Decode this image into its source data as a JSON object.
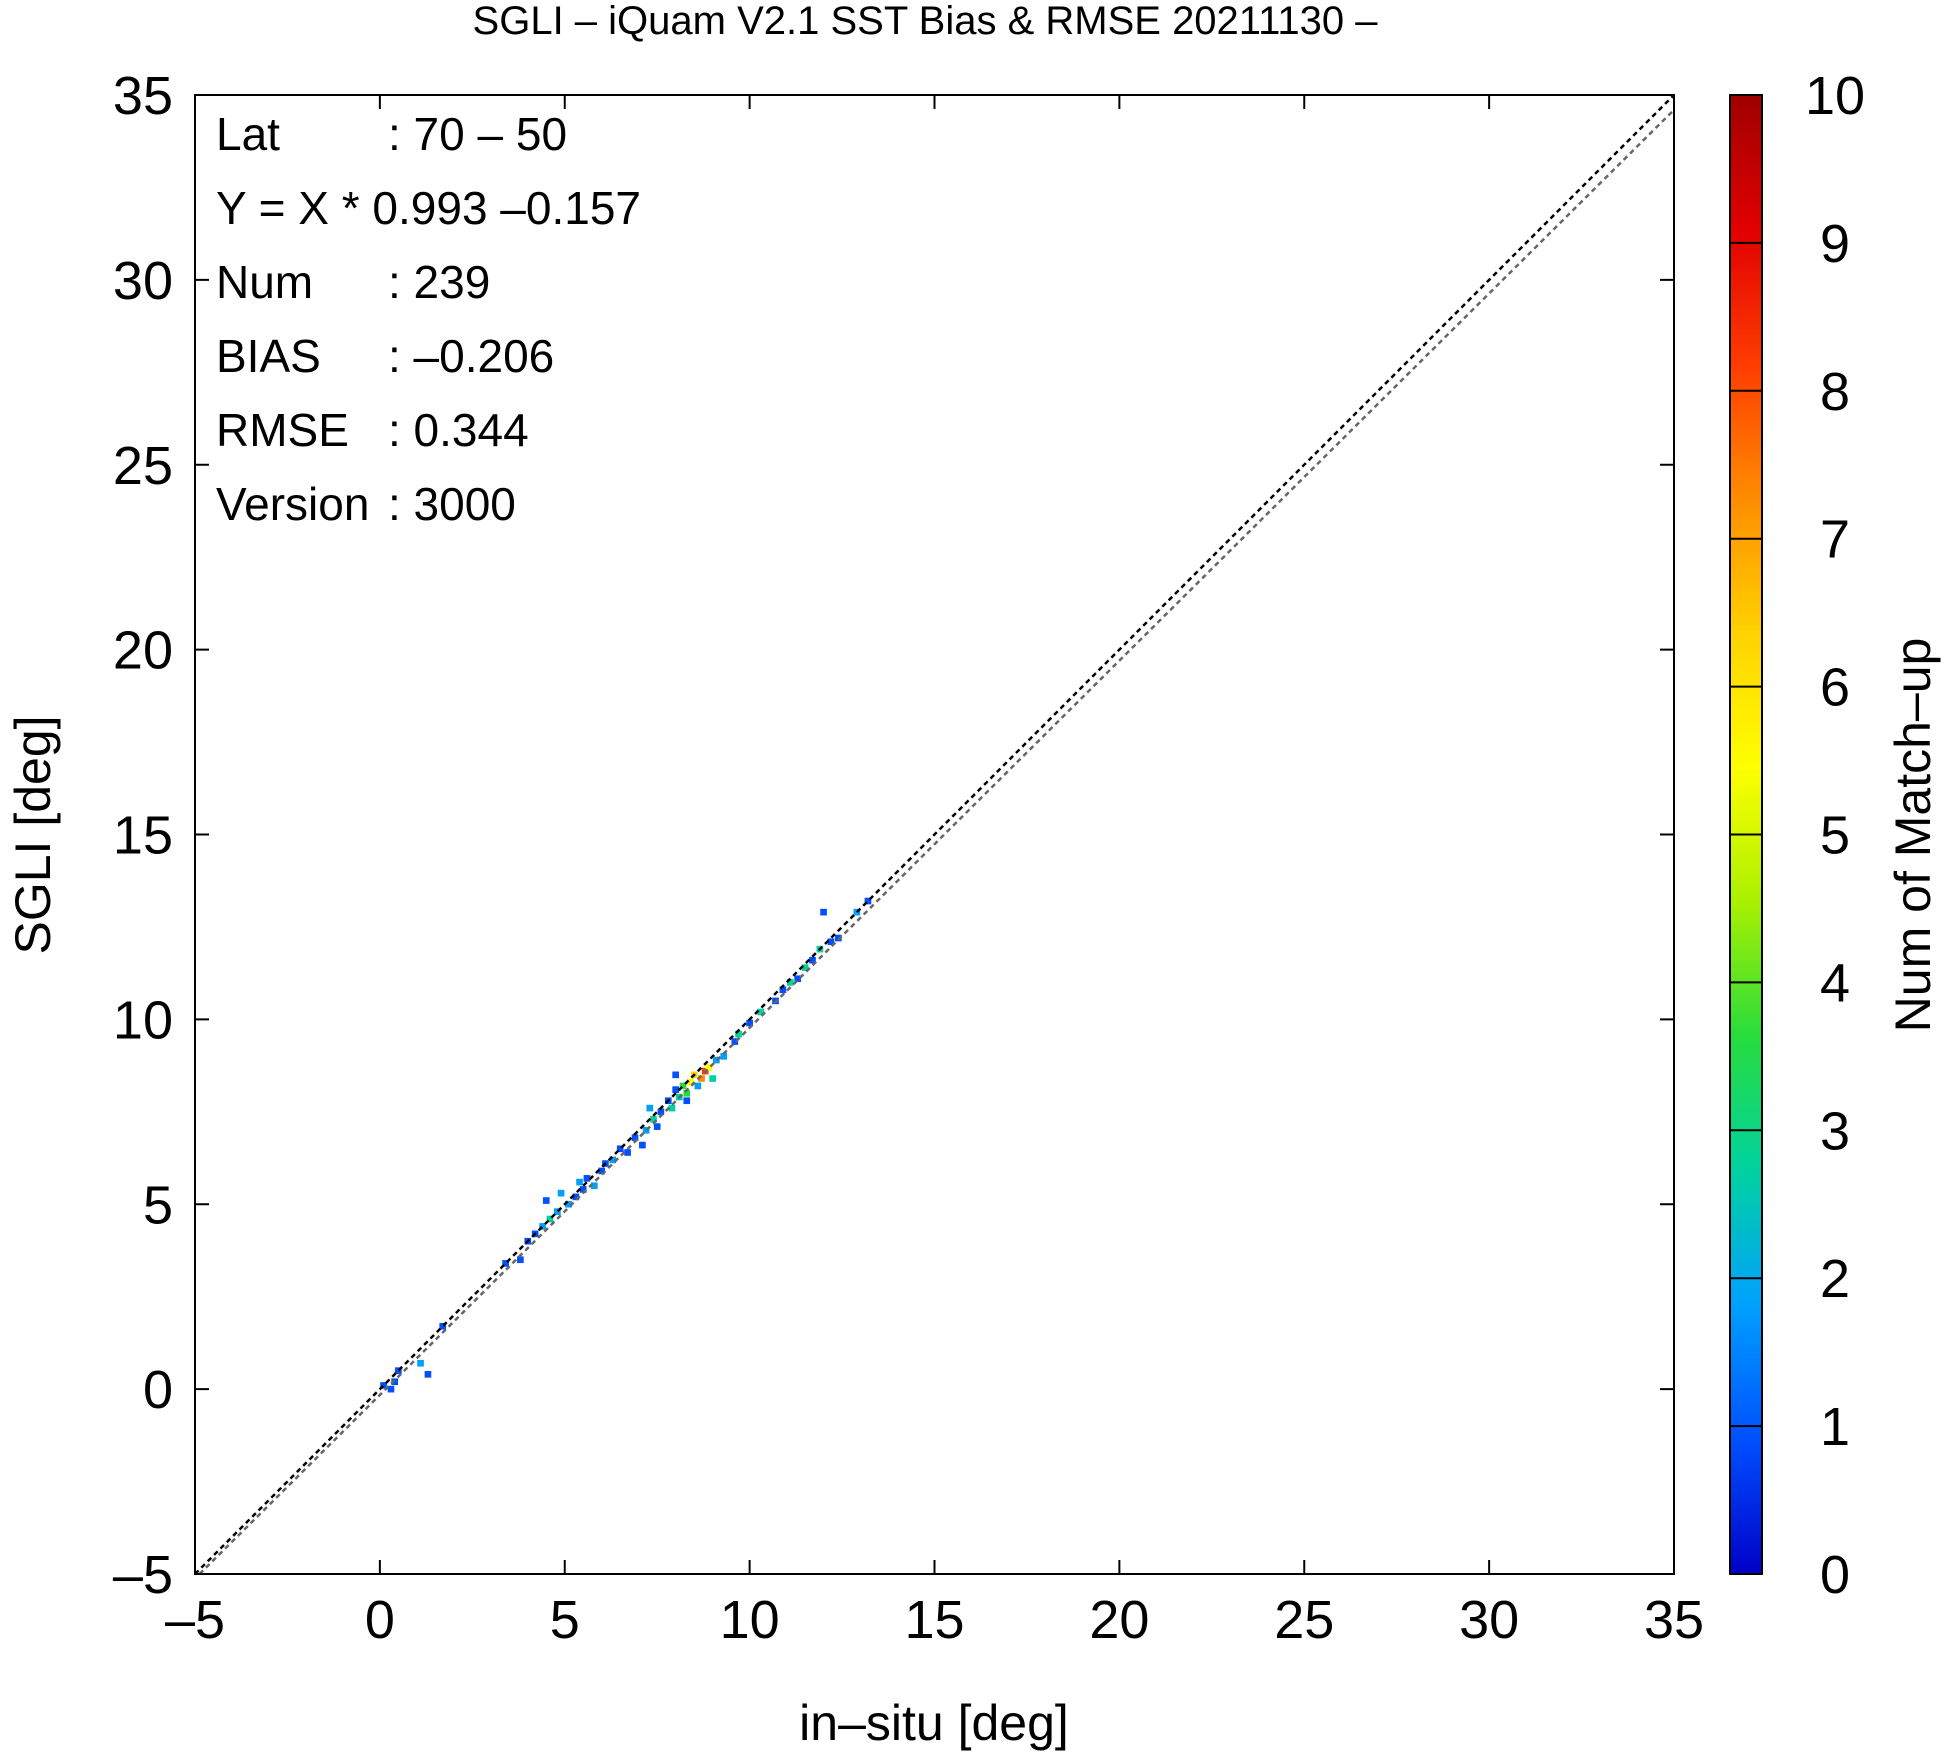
{
  "chart_data": {
    "type": "heatmap",
    "title": "SGLI – iQuam V2.1 SST Bias & RMSE 20211130 –",
    "xlabel": "in–situ [deg]",
    "ylabel": "SGLI [deg]",
    "xlim": [
      -5,
      35
    ],
    "ylim": [
      -5,
      35
    ],
    "xticks": [
      "–5",
      "0",
      "5",
      "10",
      "15",
      "20",
      "25",
      "30",
      "35"
    ],
    "yticks": [
      "–5",
      "0",
      "5",
      "10",
      "15",
      "20",
      "25",
      "30",
      "35"
    ],
    "colorbar": {
      "label": "Num of Match–up",
      "min": 0,
      "max": 10,
      "ticks": [
        "0",
        "1",
        "2",
        "3",
        "4",
        "5",
        "6",
        "7",
        "8",
        "9",
        "10"
      ],
      "colormap": [
        "#0000c8",
        "#0050ff",
        "#00a0ff",
        "#00d2a0",
        "#28dc3c",
        "#aaf000",
        "#ffff00",
        "#ffd200",
        "#ff8c00",
        "#ff3c00",
        "#e10000",
        "#a00000"
      ]
    },
    "reference_lines": [
      {
        "name": "1:1",
        "slope": 1.0,
        "intercept": 0.0,
        "color": "#000000"
      },
      {
        "name": "regression",
        "slope": 0.993,
        "intercept": -0.157,
        "color": "#666666"
      }
    ],
    "stats": [
      {
        "label": "Lat",
        "value": ": 70 – 50"
      },
      {
        "label": "Y = X * 0.993 –0.157",
        "value": ""
      },
      {
        "label": "Num",
        "value": ": 239"
      },
      {
        "label": "BIAS",
        "value": ": –0.206"
      },
      {
        "label": "RMSE",
        "value": ": 0.344"
      },
      {
        "label": "Version",
        "value": ": 3000"
      }
    ],
    "cells": [
      [
        0.1,
        0.1,
        1
      ],
      [
        0.3,
        0.0,
        1
      ],
      [
        0.4,
        0.2,
        1
      ],
      [
        0.5,
        0.5,
        1
      ],
      [
        1.1,
        0.7,
        2
      ],
      [
        1.3,
        0.4,
        1
      ],
      [
        1.7,
        1.7,
        1
      ],
      [
        3.4,
        3.4,
        1
      ],
      [
        3.8,
        3.5,
        1
      ],
      [
        4.0,
        4.0,
        1
      ],
      [
        4.2,
        4.2,
        1
      ],
      [
        4.4,
        4.4,
        2
      ],
      [
        4.6,
        4.6,
        3
      ],
      [
        4.8,
        4.8,
        2
      ],
      [
        4.5,
        5.1,
        1
      ],
      [
        4.9,
        5.3,
        2
      ],
      [
        5.1,
        5.0,
        2
      ],
      [
        5.3,
        5.2,
        1
      ],
      [
        5.4,
        5.6,
        2
      ],
      [
        5.5,
        5.4,
        1
      ],
      [
        5.6,
        5.7,
        1
      ],
      [
        5.8,
        5.5,
        2
      ],
      [
        6.0,
        5.9,
        1
      ],
      [
        6.1,
        6.1,
        1
      ],
      [
        6.3,
        6.2,
        2
      ],
      [
        6.5,
        6.5,
        1
      ],
      [
        6.7,
        6.4,
        1
      ],
      [
        6.9,
        6.8,
        1
      ],
      [
        7.1,
        6.6,
        1
      ],
      [
        7.2,
        7.0,
        2
      ],
      [
        7.4,
        7.3,
        3
      ],
      [
        7.5,
        7.1,
        1
      ],
      [
        7.3,
        7.6,
        2
      ],
      [
        7.6,
        7.5,
        1
      ],
      [
        7.8,
        7.8,
        1
      ],
      [
        7.9,
        7.6,
        3
      ],
      [
        8.0,
        8.1,
        1
      ],
      [
        8.1,
        7.9,
        3
      ],
      [
        8.2,
        8.2,
        4
      ],
      [
        8.3,
        8.0,
        4
      ],
      [
        8.4,
        8.3,
        5
      ],
      [
        8.5,
        8.5,
        6
      ],
      [
        8.6,
        8.2,
        2
      ],
      [
        8.7,
        8.4,
        7
      ],
      [
        8.8,
        8.6,
        8
      ],
      [
        8.9,
        8.7,
        5
      ],
      [
        9.0,
        8.4,
        3
      ],
      [
        9.1,
        8.9,
        2
      ],
      [
        8.3,
        7.8,
        1
      ],
      [
        8.0,
        8.5,
        1
      ],
      [
        9.3,
        9.0,
        2
      ],
      [
        9.6,
        9.4,
        1
      ],
      [
        9.7,
        9.6,
        3
      ],
      [
        10.0,
        9.9,
        1
      ],
      [
        10.3,
        10.2,
        3
      ],
      [
        10.7,
        10.5,
        1
      ],
      [
        10.9,
        10.8,
        1
      ],
      [
        11.1,
        11.0,
        3
      ],
      [
        11.3,
        11.1,
        1
      ],
      [
        11.5,
        11.4,
        3
      ],
      [
        11.7,
        11.6,
        1
      ],
      [
        11.9,
        11.9,
        3
      ],
      [
        12.2,
        12.1,
        1
      ],
      [
        12.4,
        12.2,
        1
      ],
      [
        12.0,
        12.9,
        1
      ],
      [
        12.9,
        12.9,
        2
      ],
      [
        13.2,
        13.2,
        1
      ]
    ]
  }
}
